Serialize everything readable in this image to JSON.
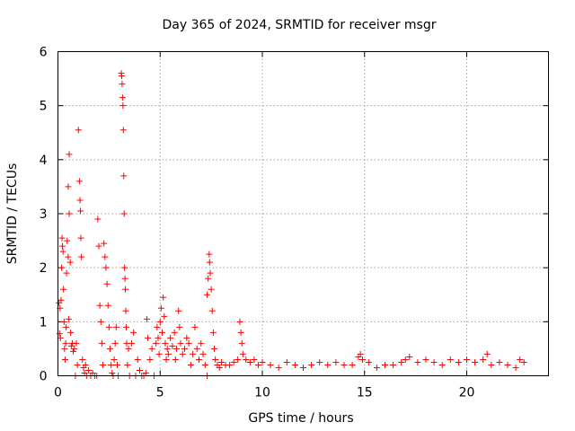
{
  "chart_data": {
    "type": "scatter",
    "title": "Day 365 of 2024, SRMTID for receiver msgr",
    "xlabel": "GPS time / hours",
    "ylabel": "SRMTID / TECUs",
    "xlim": [
      0,
      24
    ],
    "ylim": [
      0,
      6
    ],
    "xticks": [
      "0",
      "5",
      "10",
      "15",
      "20"
    ],
    "yticks": [
      "0",
      "1",
      "2",
      "3",
      "4",
      "5",
      "6"
    ],
    "grid": true,
    "marker": "plus",
    "color": "#ff0000",
    "series": [
      {
        "name": "SRMTID",
        "points": [
          [
            0.05,
            1.35
          ],
          [
            0.08,
            0.78
          ],
          [
            0.1,
            1.25
          ],
          [
            0.12,
            0.7
          ],
          [
            0.15,
            1.4
          ],
          [
            0.18,
            2.0
          ],
          [
            0.2,
            2.55
          ],
          [
            0.22,
            2.4
          ],
          [
            0.25,
            2.3
          ],
          [
            0.27,
            1.6
          ],
          [
            0.3,
            1.0
          ],
          [
            0.32,
            0.5
          ],
          [
            0.35,
            0.3
          ],
          [
            0.38,
            0.6
          ],
          [
            0.4,
            0.9
          ],
          [
            0.42,
            1.9
          ],
          [
            0.45,
            2.5
          ],
          [
            0.5,
            3.5
          ],
          [
            0.5,
            2.2
          ],
          [
            0.52,
            1.05
          ],
          [
            0.55,
            4.1
          ],
          [
            0.55,
            3.0
          ],
          [
            0.6,
            2.1
          ],
          [
            0.62,
            0.8
          ],
          [
            0.65,
            0.55
          ],
          [
            0.7,
            0.6
          ],
          [
            0.75,
            0.45
          ],
          [
            0.8,
            0.5
          ],
          [
            0.85,
            0.0
          ],
          [
            0.9,
            0.6
          ],
          [
            0.95,
            0.2
          ],
          [
            1.0,
            4.55
          ],
          [
            1.05,
            3.6
          ],
          [
            1.08,
            3.25
          ],
          [
            1.1,
            3.05
          ],
          [
            1.12,
            2.55
          ],
          [
            1.15,
            2.2
          ],
          [
            1.2,
            0.3
          ],
          [
            1.25,
            0.15
          ],
          [
            1.3,
            0.05
          ],
          [
            1.35,
            0.2
          ],
          [
            1.4,
            0.0
          ],
          [
            1.5,
            0.1
          ],
          [
            1.6,
            0.0
          ],
          [
            1.7,
            0.05
          ],
          [
            1.8,
            0.0
          ],
          [
            1.9,
            0.0
          ],
          [
            1.95,
            2.9
          ],
          [
            2.0,
            2.4
          ],
          [
            2.05,
            1.3
          ],
          [
            2.1,
            1.0
          ],
          [
            2.15,
            0.6
          ],
          [
            2.2,
            0.2
          ],
          [
            2.25,
            2.45
          ],
          [
            2.3,
            2.2
          ],
          [
            2.35,
            2.0
          ],
          [
            2.4,
            1.7
          ],
          [
            2.45,
            1.3
          ],
          [
            2.5,
            0.9
          ],
          [
            2.55,
            0.5
          ],
          [
            2.6,
            0.2
          ],
          [
            2.65,
            0.05
          ],
          [
            2.7,
            0.0
          ],
          [
            2.75,
            0.3
          ],
          [
            2.8,
            0.6
          ],
          [
            2.85,
            0.9
          ],
          [
            2.9,
            0.2
          ],
          [
            2.95,
            0.0
          ],
          [
            3.1,
            5.6
          ],
          [
            3.12,
            5.55
          ],
          [
            3.14,
            5.4
          ],
          [
            3.16,
            5.15
          ],
          [
            3.18,
            5.0
          ],
          [
            3.2,
            4.55
          ],
          [
            3.22,
            3.7
          ],
          [
            3.24,
            3.0
          ],
          [
            3.26,
            2.0
          ],
          [
            3.28,
            1.8
          ],
          [
            3.3,
            1.6
          ],
          [
            3.32,
            1.2
          ],
          [
            3.34,
            0.9
          ],
          [
            3.36,
            0.6
          ],
          [
            3.4,
            0.2
          ],
          [
            3.45,
            0.5
          ],
          [
            3.5,
            0.0
          ],
          [
            3.6,
            0.6
          ],
          [
            3.7,
            0.8
          ],
          [
            3.8,
            0.0
          ],
          [
            3.9,
            0.3
          ],
          [
            4.0,
            0.1
          ],
          [
            4.1,
            0.0
          ],
          [
            4.2,
            0.0
          ],
          [
            4.3,
            0.05
          ],
          [
            4.35,
            1.05
          ],
          [
            4.4,
            0.7
          ],
          [
            4.5,
            0.3
          ],
          [
            4.6,
            0.5
          ],
          [
            4.7,
            0.0
          ],
          [
            4.8,
            0.6
          ],
          [
            4.85,
            0.9
          ],
          [
            4.9,
            0.7
          ],
          [
            4.95,
            0.4
          ],
          [
            5.0,
            1.0
          ],
          [
            5.05,
            1.25
          ],
          [
            5.1,
            0.8
          ],
          [
            5.15,
            1.45
          ],
          [
            5.2,
            1.1
          ],
          [
            5.25,
            0.6
          ],
          [
            5.3,
            0.3
          ],
          [
            5.35,
            0.5
          ],
          [
            5.4,
            0.4
          ],
          [
            5.5,
            0.7
          ],
          [
            5.6,
            0.55
          ],
          [
            5.7,
            0.8
          ],
          [
            5.75,
            0.3
          ],
          [
            5.8,
            0.5
          ],
          [
            5.9,
            1.2
          ],
          [
            5.95,
            0.9
          ],
          [
            6.0,
            0.6
          ],
          [
            6.1,
            0.4
          ],
          [
            6.2,
            0.5
          ],
          [
            6.3,
            0.7
          ],
          [
            6.4,
            0.6
          ],
          [
            6.5,
            0.2
          ],
          [
            6.6,
            0.4
          ],
          [
            6.7,
            0.9
          ],
          [
            6.8,
            0.5
          ],
          [
            6.9,
            0.3
          ],
          [
            7.0,
            0.6
          ],
          [
            7.1,
            0.4
          ],
          [
            7.2,
            0.2
          ],
          [
            7.3,
            0.0
          ],
          [
            7.3,
            1.5
          ],
          [
            7.35,
            1.8
          ],
          [
            7.4,
            2.25
          ],
          [
            7.42,
            2.1
          ],
          [
            7.45,
            1.9
          ],
          [
            7.5,
            1.6
          ],
          [
            7.55,
            1.2
          ],
          [
            7.6,
            0.8
          ],
          [
            7.65,
            0.5
          ],
          [
            7.7,
            0.3
          ],
          [
            7.8,
            0.2
          ],
          [
            7.9,
            0.15
          ],
          [
            8.0,
            0.25
          ],
          [
            8.2,
            0.2
          ],
          [
            8.4,
            0.2
          ],
          [
            8.6,
            0.25
          ],
          [
            8.8,
            0.3
          ],
          [
            8.9,
            1.0
          ],
          [
            8.95,
            0.8
          ],
          [
            9.0,
            0.6
          ],
          [
            9.05,
            0.4
          ],
          [
            9.2,
            0.3
          ],
          [
            9.4,
            0.25
          ],
          [
            9.6,
            0.3
          ],
          [
            9.8,
            0.2
          ],
          [
            10.0,
            0.25
          ],
          [
            10.4,
            0.2
          ],
          [
            10.8,
            0.15
          ],
          [
            11.2,
            0.25
          ],
          [
            11.6,
            0.2
          ],
          [
            12.0,
            0.15
          ],
          [
            12.4,
            0.2
          ],
          [
            12.8,
            0.25
          ],
          [
            13.2,
            0.2
          ],
          [
            13.6,
            0.25
          ],
          [
            14.0,
            0.2
          ],
          [
            14.4,
            0.2
          ],
          [
            14.7,
            0.35
          ],
          [
            14.8,
            0.4
          ],
          [
            14.9,
            0.3
          ],
          [
            15.2,
            0.25
          ],
          [
            15.6,
            0.15
          ],
          [
            16.0,
            0.2
          ],
          [
            16.4,
            0.2
          ],
          [
            16.8,
            0.25
          ],
          [
            17.0,
            0.3
          ],
          [
            17.2,
            0.35
          ],
          [
            17.6,
            0.25
          ],
          [
            18.0,
            0.3
          ],
          [
            18.4,
            0.25
          ],
          [
            18.8,
            0.2
          ],
          [
            19.2,
            0.3
          ],
          [
            19.6,
            0.25
          ],
          [
            20.0,
            0.3
          ],
          [
            20.4,
            0.25
          ],
          [
            20.8,
            0.3
          ],
          [
            21.0,
            0.4
          ],
          [
            21.2,
            0.2
          ],
          [
            21.6,
            0.25
          ],
          [
            22.0,
            0.2
          ],
          [
            22.4,
            0.15
          ],
          [
            22.6,
            0.3
          ],
          [
            22.8,
            0.25
          ]
        ]
      }
    ]
  }
}
